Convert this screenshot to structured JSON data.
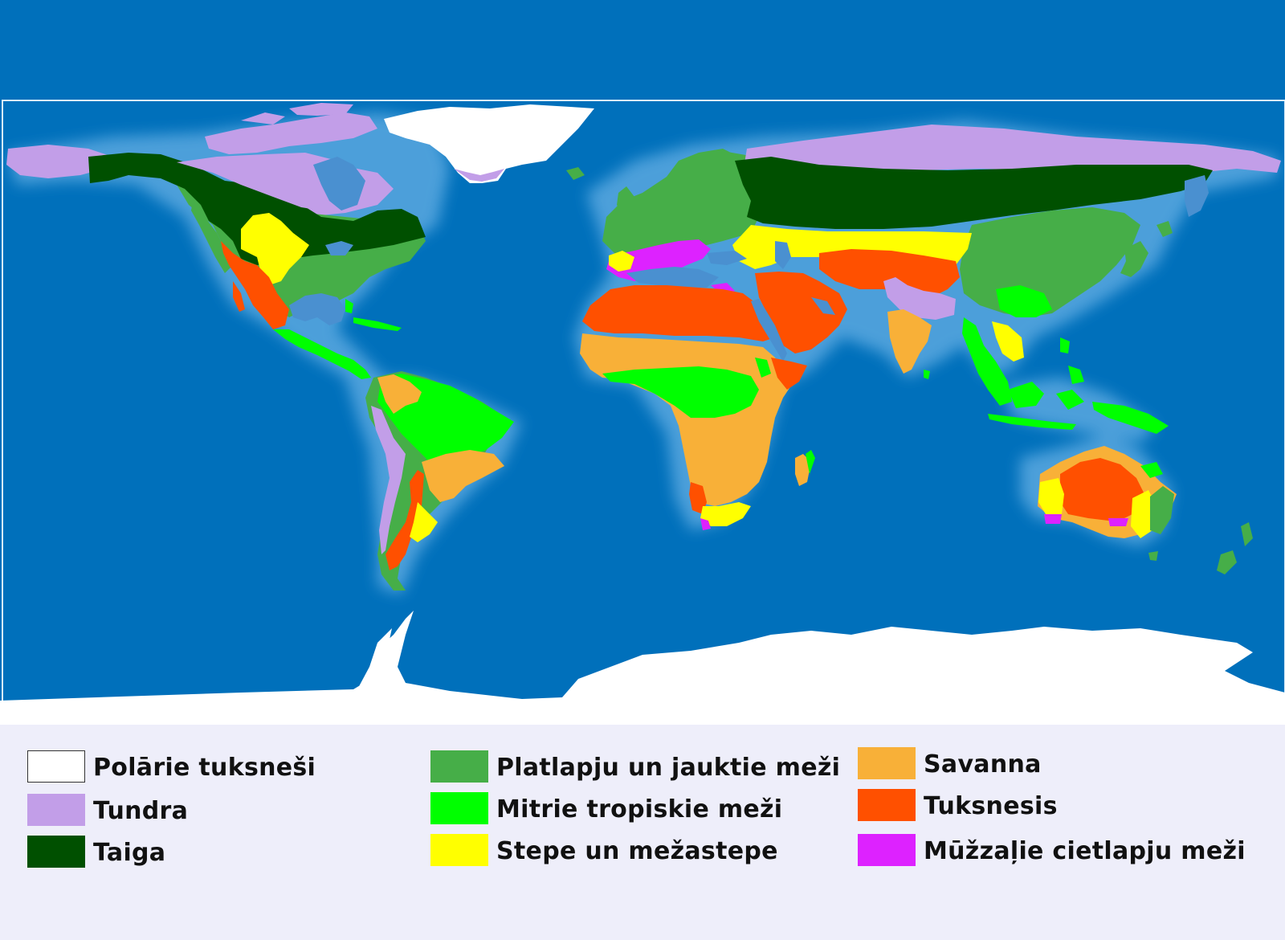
{
  "map": {
    "ocean_color": "#0070bb",
    "glow_color": "#5aa8e0",
    "lake_color": "#4a90d0",
    "polar_color": "#ffffff"
  },
  "legend": {
    "items": [
      {
        "id": "polar",
        "label": "Polārie tuksneši",
        "color": "#ffffff"
      },
      {
        "id": "tundra",
        "label": "Tundra",
        "color": "#c29ee8"
      },
      {
        "id": "taiga",
        "label": "Taiga",
        "color": "#005000"
      },
      {
        "id": "broadleaf",
        "label": "Platlapju un jauktie meži",
        "color": "#46ae48"
      },
      {
        "id": "rainforest",
        "label": "Mitrie tropiskie meži",
        "color": "#00ff00"
      },
      {
        "id": "steppe",
        "label": "Stepe un mežastepe",
        "color": "#ffff00"
      },
      {
        "id": "savanna",
        "label": "Savanna",
        "color": "#f8b038"
      },
      {
        "id": "desert",
        "label": "Tuksnesis",
        "color": "#ff5000"
      },
      {
        "id": "sclerophyll",
        "label": "Mūžzaļie cietlapju meži",
        "color": "#dd22ff"
      }
    ]
  }
}
